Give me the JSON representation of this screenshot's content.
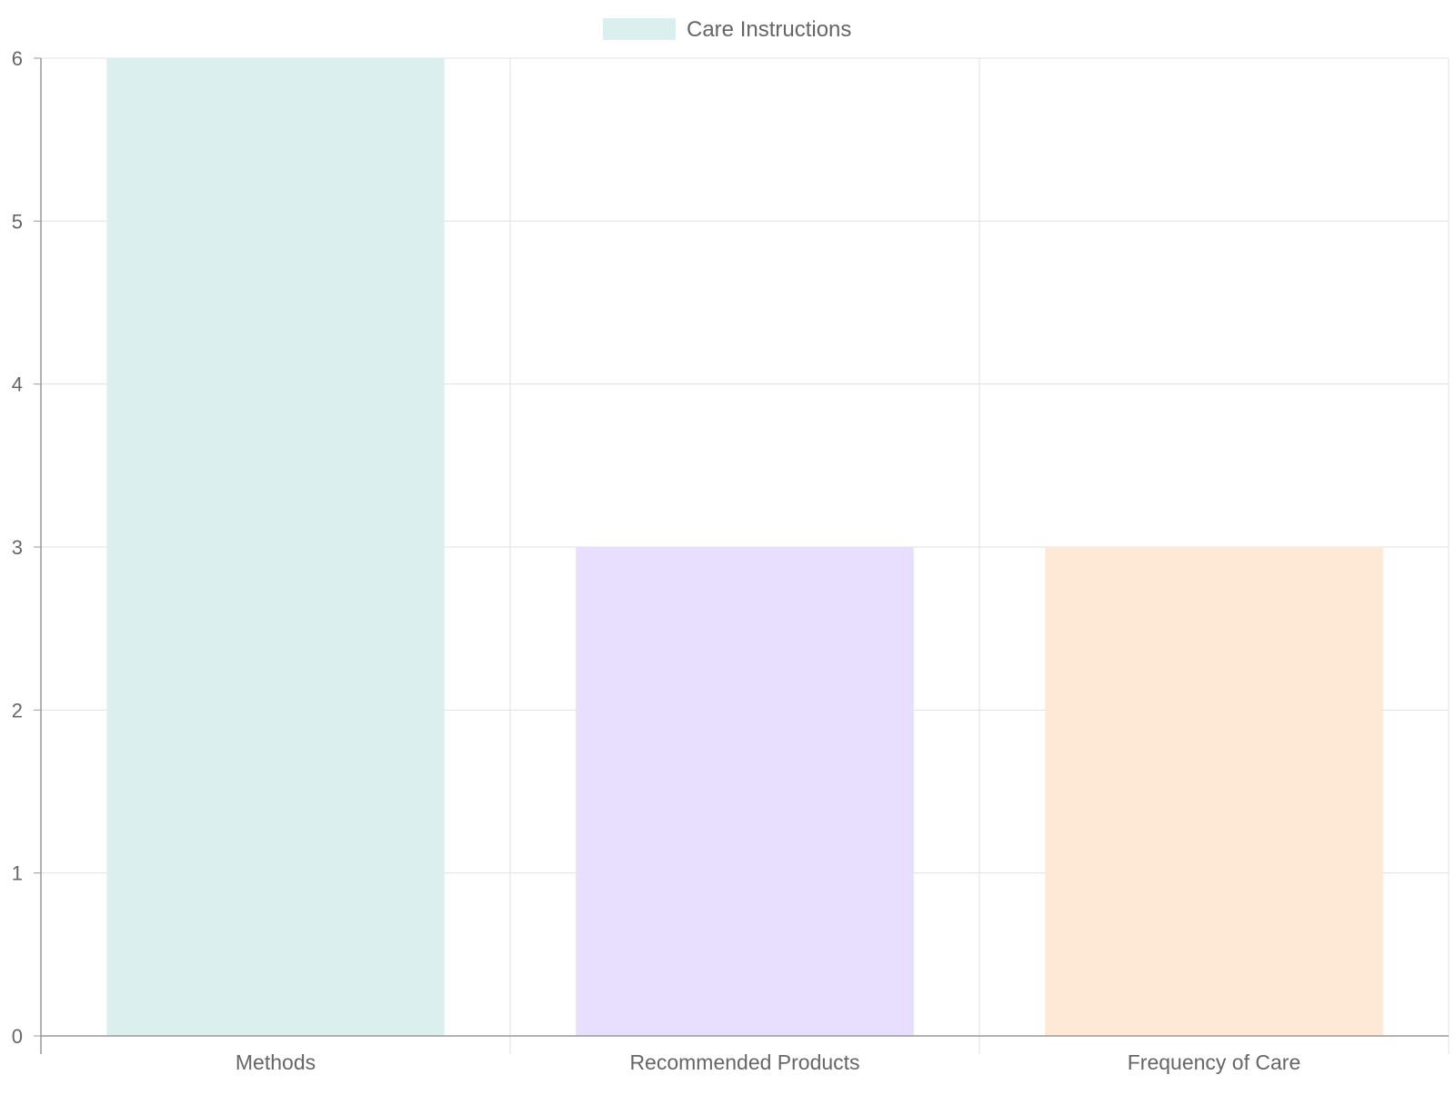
{
  "chart_data": {
    "type": "bar",
    "categories": [
      "Methods",
      "Recommended Products",
      "Frequency of Care"
    ],
    "series": [
      {
        "name": "Care Instructions",
        "values": [
          6,
          3,
          3
        ]
      }
    ],
    "bar_colors": [
      "#dbf0ee",
      "#e7dffd",
      "#fee9d6"
    ],
    "legend": {
      "label": "Care Instructions",
      "swatch_color": "#dbf0ee",
      "position": "top"
    },
    "ylim": [
      0,
      6
    ],
    "y_ticks": [
      "0",
      "1",
      "2",
      "3",
      "4",
      "5",
      "6"
    ],
    "grid": true,
    "grid_color": "#e0e0e0",
    "axis_color": "#999999",
    "title": "",
    "xlabel": "",
    "ylabel": ""
  }
}
